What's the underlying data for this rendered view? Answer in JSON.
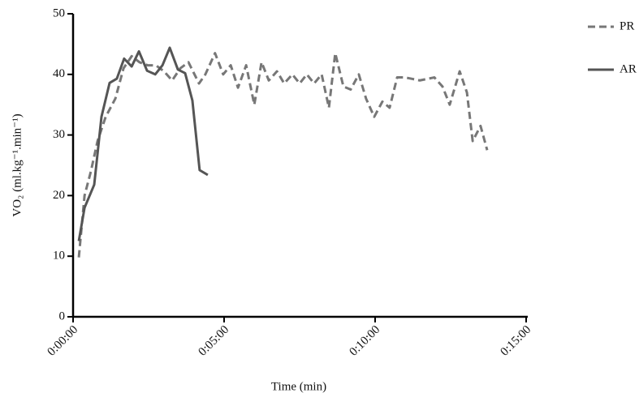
{
  "chart_data": {
    "type": "line",
    "x_label": "Time (min)",
    "y_label": "VO₂ (ml.kg⁻¹.min⁻¹)",
    "xlim": [
      0,
      15
    ],
    "xticks": [
      {
        "value": 0,
        "label": "0:00:00"
      },
      {
        "value": 5,
        "label": "0:05:00"
      },
      {
        "value": 10,
        "label": "0:10:00"
      },
      {
        "value": 15,
        "label": "0:15:00"
      }
    ],
    "ylim": [
      0,
      50
    ],
    "yticks": [
      0,
      10,
      20,
      30,
      40,
      50
    ],
    "grid": false,
    "legend": "top-right",
    "series": [
      {
        "name": "PR",
        "color": "#777777",
        "dashed": true,
        "x": [
          0.19,
          0.38,
          0.59,
          0.81,
          1.08,
          1.4,
          1.67,
          1.94,
          2.2,
          2.47,
          2.74,
          3.01,
          3.28,
          3.55,
          3.82,
          4.17,
          4.38,
          4.7,
          4.97,
          5.22,
          5.46,
          5.73,
          6.0,
          6.24,
          6.48,
          6.75,
          6.99,
          7.26,
          7.5,
          7.74,
          7.98,
          8.23,
          8.47,
          8.68,
          8.95,
          9.19,
          9.46,
          9.7,
          9.97,
          10.24,
          10.48,
          10.73,
          10.99,
          11.48,
          11.96,
          12.23,
          12.47,
          12.8,
          13.04,
          13.23,
          13.49,
          13.71
        ],
        "values": [
          9.8,
          20,
          24,
          29,
          33,
          36,
          41,
          43,
          42,
          41.5,
          41.5,
          40.5,
          39,
          41,
          42,
          38.5,
          40,
          43.5,
          40,
          41.5,
          37.8,
          41.5,
          35,
          42,
          39,
          40.5,
          38.5,
          40,
          38.5,
          40,
          38.5,
          40,
          34.5,
          43.5,
          38,
          37.5,
          40,
          36,
          33,
          35.5,
          34.5,
          39.5,
          39.5,
          39,
          39.5,
          38,
          35,
          40.5,
          37,
          29,
          31.5,
          27.5
        ]
      },
      {
        "name": "AR",
        "color": "#555555",
        "dashed": false,
        "x": [
          0.19,
          0.38,
          0.7,
          0.94,
          1.21,
          1.45,
          1.69,
          1.94,
          2.18,
          2.45,
          2.72,
          2.96,
          3.2,
          3.47,
          3.71,
          3.95,
          4.19,
          4.46
        ],
        "values": [
          12.5,
          18,
          21.8,
          33,
          38.6,
          39.3,
          42.6,
          41.3,
          43.8,
          40.6,
          40,
          41.5,
          44.4,
          40.8,
          40.2,
          35.7,
          24.2,
          23.4
        ]
      }
    ]
  }
}
